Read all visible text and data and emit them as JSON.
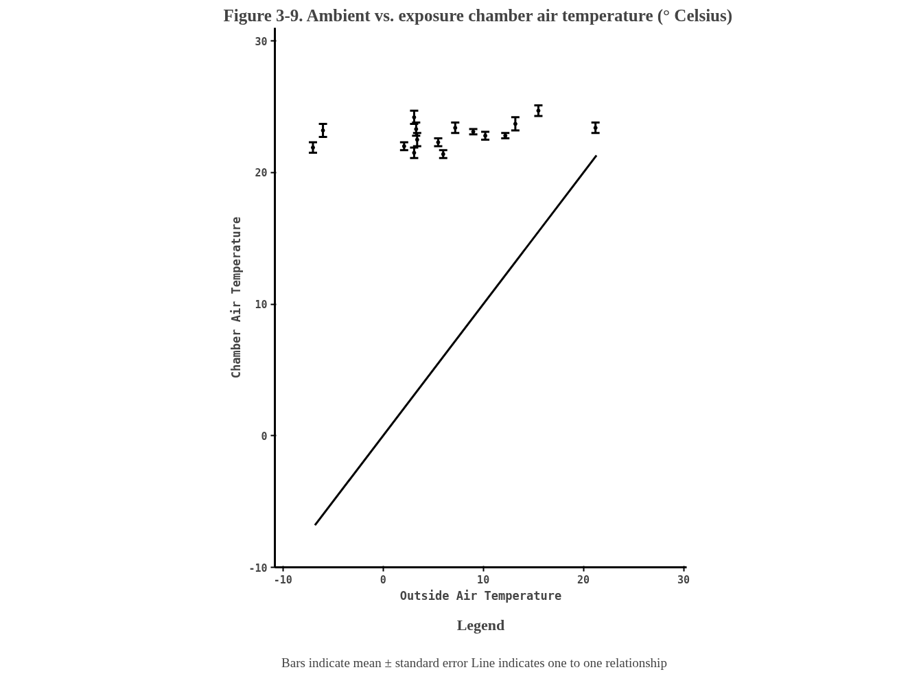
{
  "chart_data": {
    "type": "scatter",
    "title": "Figure 3-9.  Ambient vs. exposure chamber air temperature (° Celsius)",
    "xlabel": "Outside Air Temperature",
    "ylabel": "Chamber Air Temperature",
    "xlim": [
      -10.8,
      30.3
    ],
    "ylim": [
      -10,
      31
    ],
    "xticks": [
      -10,
      0,
      10,
      20,
      30
    ],
    "yticks": [
      -10,
      0,
      10,
      20,
      30
    ],
    "grid": false,
    "series": [
      {
        "color": "#000000",
        "marker": "circle",
        "x": [
          -7.0,
          -6.0,
          2.1,
          3.1,
          3.1,
          3.3,
          3.4,
          5.5,
          6.0,
          7.2,
          9.0,
          10.2,
          12.2,
          13.2,
          15.5,
          21.2
        ],
        "values": [
          21.9,
          23.2,
          22.0,
          21.5,
          24.2,
          23.3,
          22.5,
          22.3,
          21.4,
          23.4,
          23.1,
          22.8,
          22.8,
          23.7,
          24.7,
          23.4
        ],
        "errors": [
          0.4,
          0.5,
          0.3,
          0.4,
          0.5,
          0.5,
          0.5,
          0.3,
          0.3,
          0.4,
          0.2,
          0.3,
          0.2,
          0.5,
          0.4,
          0.4
        ]
      },
      {
        "type": "line",
        "color": "#000000",
        "line_style": "solid",
        "x": [
          -6.8,
          21.3
        ],
        "values": [
          -6.8,
          21.3
        ]
      }
    ],
    "annotations": [
      "Legend",
      "Bars indicate mean ± standard error     Line indicates one to one relationship"
    ]
  }
}
